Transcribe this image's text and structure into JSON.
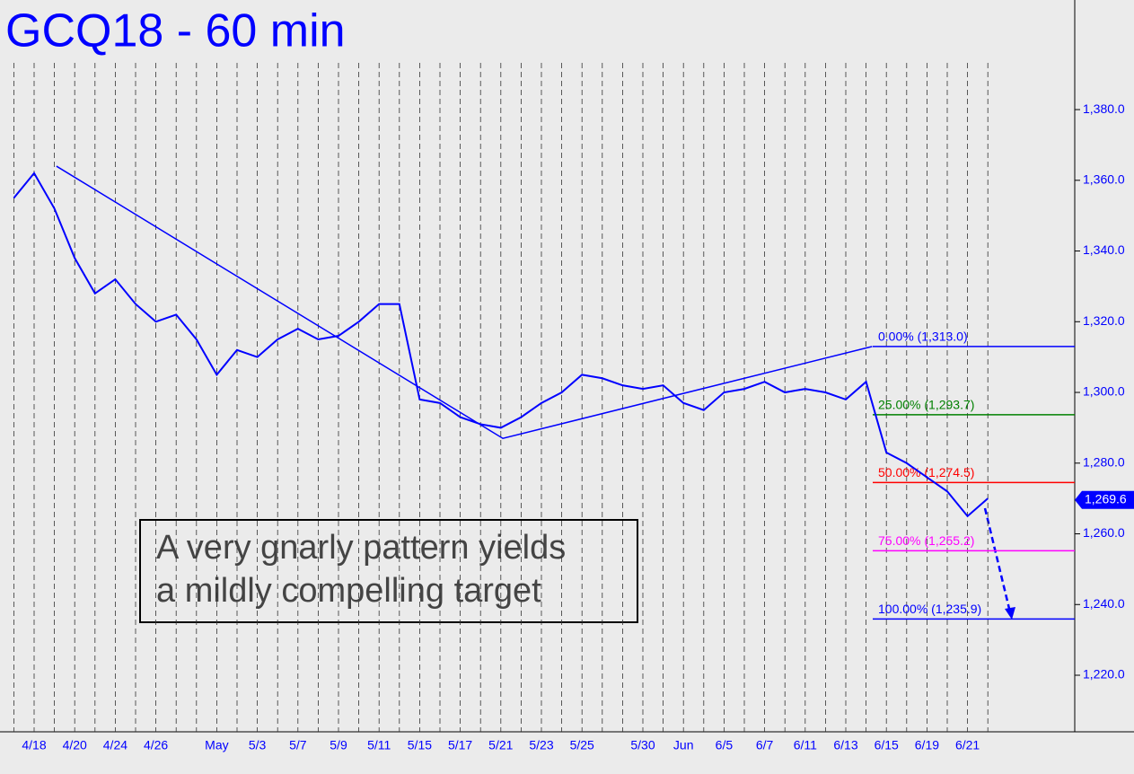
{
  "chart_data": {
    "type": "line",
    "title": "GCQ18 - 60 min",
    "categories": [
      null,
      "4/18",
      null,
      "4/20",
      null,
      "4/24",
      null,
      "4/26",
      null,
      null,
      "May",
      null,
      "5/3",
      null,
      "5/7",
      null,
      "5/9",
      null,
      "5/11",
      null,
      "5/15",
      null,
      "5/17",
      null,
      "5/21",
      null,
      "5/23",
      null,
      "5/25",
      null,
      null,
      "5/30",
      null,
      "Jun",
      null,
      "6/5",
      null,
      "6/7",
      null,
      "6/11",
      null,
      "6/13",
      null,
      "6/15",
      null,
      "6/19",
      null,
      "6/21",
      null
    ],
    "series": [
      {
        "name": "GCQ18",
        "color": "#0000ff",
        "values": [
          1355,
          1362,
          1352,
          1338,
          1328,
          1332,
          1325,
          1320,
          1322,
          1315,
          1305,
          1312,
          1310,
          1315,
          1318,
          1315,
          1316,
          1320,
          1325,
          1325,
          1298,
          1297,
          1293,
          1291,
          1290,
          1293,
          1297,
          1300,
          1305,
          1304,
          1302,
          1301,
          1302,
          1297,
          1295,
          1300,
          1301,
          1303,
          1300,
          1301,
          1300,
          1298,
          1303,
          1283,
          1280,
          1276,
          1272,
          1265,
          1270
        ]
      }
    ],
    "pattern": {
      "color": "#0000ff",
      "values": [
        1364,
        1287,
        1313
      ]
    },
    "fib_levels": [
      {
        "value": 1313.0,
        "label": "0.00% (1,313.0)",
        "color": "#0000ff"
      },
      {
        "value": 1293.7,
        "label": "25.00% (1,293.7)",
        "color": "#008000"
      },
      {
        "value": 1274.5,
        "label": "50.00% (1,274.5)",
        "color": "#ff0000"
      },
      {
        "value": 1255.2,
        "label": "75.00% (1,255.2)",
        "color": "#ff00ff"
      },
      {
        "value": 1235.9,
        "label": "100.00% (1,235.9)",
        "color": "#0000ff"
      }
    ],
    "last_price": {
      "value": 1269.6,
      "label": "1,269.6"
    },
    "annotation": [
      "A very gnarly pattern yields",
      "a mildly compelling target"
    ],
    "ylim": [
      1204,
      1411
    ],
    "yticks": [
      {
        "value": 1220,
        "label": "1,220.0"
      },
      {
        "value": 1240,
        "label": "1,240.0"
      },
      {
        "value": 1260,
        "label": "1,260.0"
      },
      {
        "value": 1280,
        "label": "1,280.0"
      },
      {
        "value": 1300,
        "label": "1,300.0"
      },
      {
        "value": 1320,
        "label": "1,320.0"
      },
      {
        "value": 1340,
        "label": "1,340.0"
      },
      {
        "value": 1360,
        "label": "1,360.0"
      },
      {
        "value": 1380,
        "label": "1,380.0"
      }
    ]
  }
}
